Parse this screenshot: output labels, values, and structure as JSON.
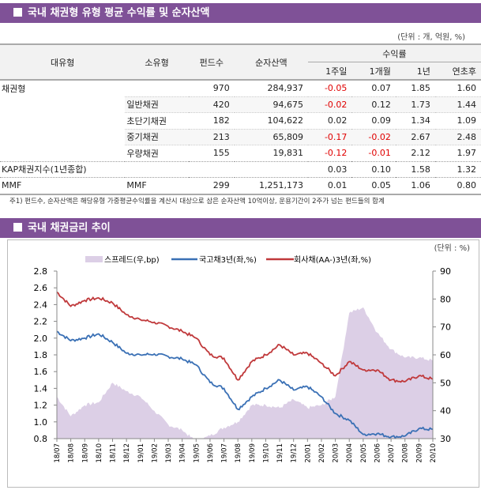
{
  "section1": {
    "title": "국내 채권형 유형 평균 수익률 및 순자산액",
    "unit": "(단위 : 개, 억원, %)"
  },
  "table": {
    "headers": {
      "major": "대유형",
      "minor": "소유형",
      "funds": "펀드수",
      "nav": "순자산액",
      "returns": "수익률",
      "w1": "1주일",
      "m1": "1개월",
      "y1": "1년",
      "ytd": "연초후"
    },
    "rows": [
      {
        "major": "채권형",
        "minor": "",
        "funds": "970",
        "nav": "284,937",
        "w1": "-0.05",
        "m1": "0.07",
        "y1": "1.85",
        "ytd": "1.60"
      },
      {
        "major": "",
        "minor": "일반채권",
        "funds": "420",
        "nav": "94,675",
        "w1": "-0.02",
        "m1": "0.12",
        "y1": "1.73",
        "ytd": "1.44"
      },
      {
        "major": "",
        "minor": "초단기채권",
        "funds": "182",
        "nav": "104,622",
        "w1": "0.02",
        "m1": "0.09",
        "y1": "1.34",
        "ytd": "1.09"
      },
      {
        "major": "",
        "minor": "중기채권",
        "funds": "213",
        "nav": "65,809",
        "w1": "-0.17",
        "m1": "-0.02",
        "y1": "2.67",
        "ytd": "2.48"
      },
      {
        "major": "",
        "minor": "우량채권",
        "funds": "155",
        "nav": "19,831",
        "w1": "-0.12",
        "m1": "-0.01",
        "y1": "2.12",
        "ytd": "1.97"
      },
      {
        "major": "KAP채권지수(1년종합)",
        "minor": "",
        "funds": "",
        "nav": "",
        "w1": "0.03",
        "m1": "0.10",
        "y1": "1.58",
        "ytd": "1.32"
      },
      {
        "major": "MMF",
        "minor": "MMF",
        "funds": "299",
        "nav": "1,251,173",
        "w1": "0.01",
        "m1": "0.05",
        "y1": "1.06",
        "ytd": "0.80"
      }
    ],
    "negative_color": "#e00000"
  },
  "footnote": "주1) 펀드수, 순자산액은 해당유형 가중평균수익률을 계산시 대상으로 삼은 순자산액 10억이상, 운용기간이 2주가 넘는 펀드들의 합계",
  "section2": {
    "title": "국내 채권금리 추이"
  },
  "chart_data": {
    "type": "line",
    "unit": "(단위 : %)",
    "categories": [
      "18/07",
      "18/08",
      "18/09",
      "18/10",
      "18/11",
      "18/12",
      "19/01",
      "19/02",
      "19/03",
      "19/04",
      "19/05",
      "19/06",
      "19/07",
      "19/08",
      "19/09",
      "19/10",
      "19/11",
      "19/12",
      "20/01",
      "20/02",
      "20/03",
      "20/04",
      "20/05",
      "20/06",
      "20/07",
      "20/08",
      "20/09",
      "20/10"
    ],
    "y_left": {
      "range": [
        0.8,
        2.8
      ],
      "ticks": [
        "0.8",
        "1.0",
        "1.2",
        "1.4",
        "1.6",
        "1.8",
        "2.0",
        "2.2",
        "2.4",
        "2.6",
        "2.8"
      ]
    },
    "y_right": {
      "range": [
        30,
        90
      ],
      "ticks": [
        "30",
        "40",
        "50",
        "60",
        "70",
        "80",
        "90"
      ]
    },
    "legend_position": "top",
    "series": [
      {
        "name": "스프레드(우,bp)",
        "type": "area",
        "axis": "right",
        "color": "#dccfe6",
        "values": [
          45,
          38,
          42,
          43,
          50,
          47,
          45,
          40,
          35,
          33,
          29,
          31,
          34,
          36,
          42,
          42,
          41,
          44,
          41,
          42,
          45,
          75,
          77,
          68,
          62,
          59,
          59,
          58
        ]
      },
      {
        "name": "국고채3년(좌,%)",
        "type": "line",
        "axis": "left",
        "color": "#3a70b5",
        "values": [
          2.08,
          1.97,
          2.0,
          2.05,
          1.95,
          1.82,
          1.8,
          1.81,
          1.78,
          1.75,
          1.68,
          1.47,
          1.4,
          1.15,
          1.3,
          1.4,
          1.5,
          1.38,
          1.42,
          1.3,
          1.1,
          1.02,
          0.85,
          0.86,
          0.82,
          0.83,
          0.92,
          0.91
        ]
      },
      {
        "name": "회사채(AA-)3년(좌,%)",
        "type": "line",
        "axis": "left",
        "color": "#c0393b",
        "values": [
          2.55,
          2.38,
          2.45,
          2.48,
          2.42,
          2.28,
          2.22,
          2.19,
          2.14,
          2.08,
          2.0,
          1.8,
          1.76,
          1.5,
          1.72,
          1.8,
          1.92,
          1.8,
          1.82,
          1.7,
          1.55,
          1.72,
          1.62,
          1.62,
          1.5,
          1.48,
          1.55,
          1.51
        ]
      }
    ]
  }
}
